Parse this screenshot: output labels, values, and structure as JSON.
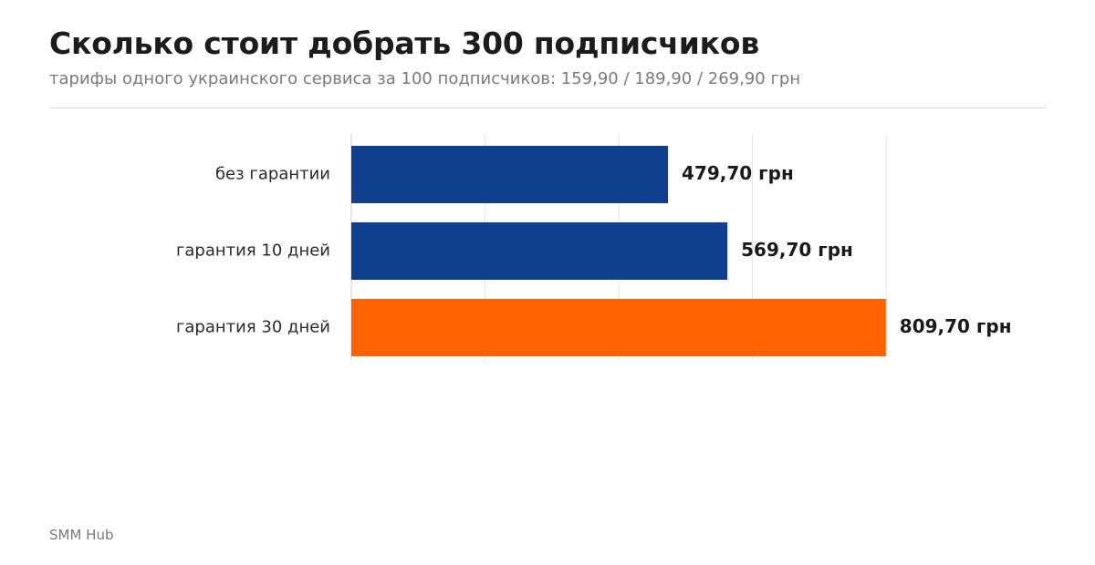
{
  "chart_data": {
    "type": "bar",
    "orientation": "horizontal",
    "title": "Сколько стоит добрать 300 подписчиков",
    "subtitle": "тарифы одного украинского сервиса за 100 подписчиков: 159,90 / 189,90 / 269,90 грн",
    "categories": [
      "без гарантии",
      "гарантия 10 дней",
      "гарантия 30 дней"
    ],
    "values": [
      479.7,
      569.7,
      809.7
    ],
    "value_labels": [
      "479,70 грн",
      "569,70 грн",
      "809,70 грн"
    ],
    "bar_colors": [
      "#0f3f8f",
      "#0f3f8f",
      "#ff6200"
    ],
    "xlim": [
      0,
      810
    ],
    "grid": true,
    "source": "SMM Hub"
  }
}
